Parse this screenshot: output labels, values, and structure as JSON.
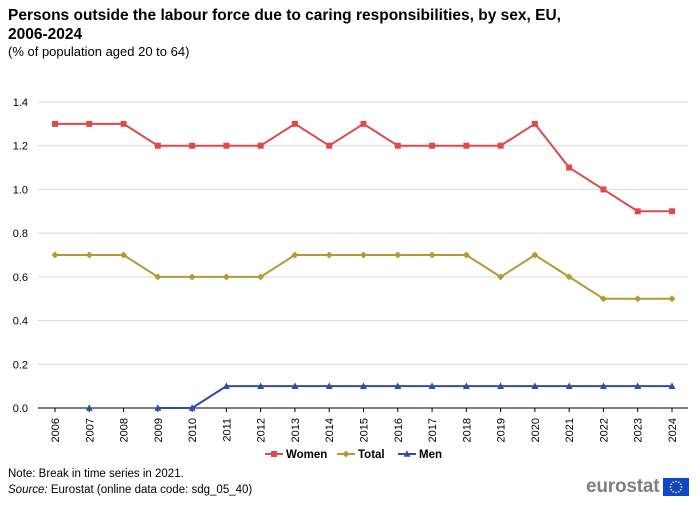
{
  "title": "Persons outside the labour force due to caring responsibilities, by sex, EU, 2006-2024",
  "subtitle": "(% of population aged 20 to 64)",
  "note": "Note: Break in time series in 2021.",
  "source_label": "Source:",
  "source_text": " Eurostat (online data code: sdg_05_40)",
  "logo_text": "eurostat",
  "colors": {
    "women": "#dc4a4a",
    "total": "#b49a34",
    "men": "#2f4eab",
    "grid": "#d9d9d9",
    "logo_blue": "#0e47cb",
    "logo_stars": "#ffd617"
  },
  "chart_data": {
    "type": "line",
    "title": "Persons outside the labour force due to caring responsibilities, by sex, EU, 2006-2024",
    "xlabel": "",
    "ylabel": "% of population aged 20 to 64",
    "ylim": [
      0,
      1.4
    ],
    "yticks": [
      "0.0",
      "0.2",
      "0.4",
      "0.6",
      "0.8",
      "1.0",
      "1.2",
      "1.4"
    ],
    "categories": [
      "2006",
      "2007",
      "2008",
      "2009",
      "2010",
      "2011",
      "2012",
      "2013",
      "2014",
      "2015",
      "2016",
      "2017",
      "2018",
      "2019",
      "2020",
      "2021",
      "2022",
      "2023",
      "2024"
    ],
    "series": [
      {
        "name": "Women",
        "color": "#dc4a4a",
        "marker": "square",
        "values": [
          1.3,
          1.3,
          1.3,
          1.2,
          1.2,
          1.2,
          1.2,
          1.3,
          1.2,
          1.3,
          1.2,
          1.2,
          1.2,
          1.2,
          1.3,
          1.1,
          1.0,
          0.9,
          0.9
        ]
      },
      {
        "name": "Total",
        "color": "#b49a34",
        "marker": "diamond",
        "values": [
          0.7,
          0.7,
          0.7,
          0.6,
          0.6,
          0.6,
          0.6,
          0.7,
          0.7,
          0.7,
          0.7,
          0.7,
          0.7,
          0.6,
          0.7,
          0.6,
          0.5,
          0.5,
          0.5
        ]
      },
      {
        "name": "Men",
        "color": "#2f4eab",
        "marker": "triangle",
        "values": [
          null,
          0.0,
          null,
          0.0,
          0.0,
          0.1,
          0.1,
          0.1,
          0.1,
          0.1,
          0.1,
          0.1,
          0.1,
          0.1,
          0.1,
          0.1,
          0.1,
          0.1,
          0.1
        ]
      }
    ],
    "legend_position": "bottom-center",
    "grid": true
  }
}
